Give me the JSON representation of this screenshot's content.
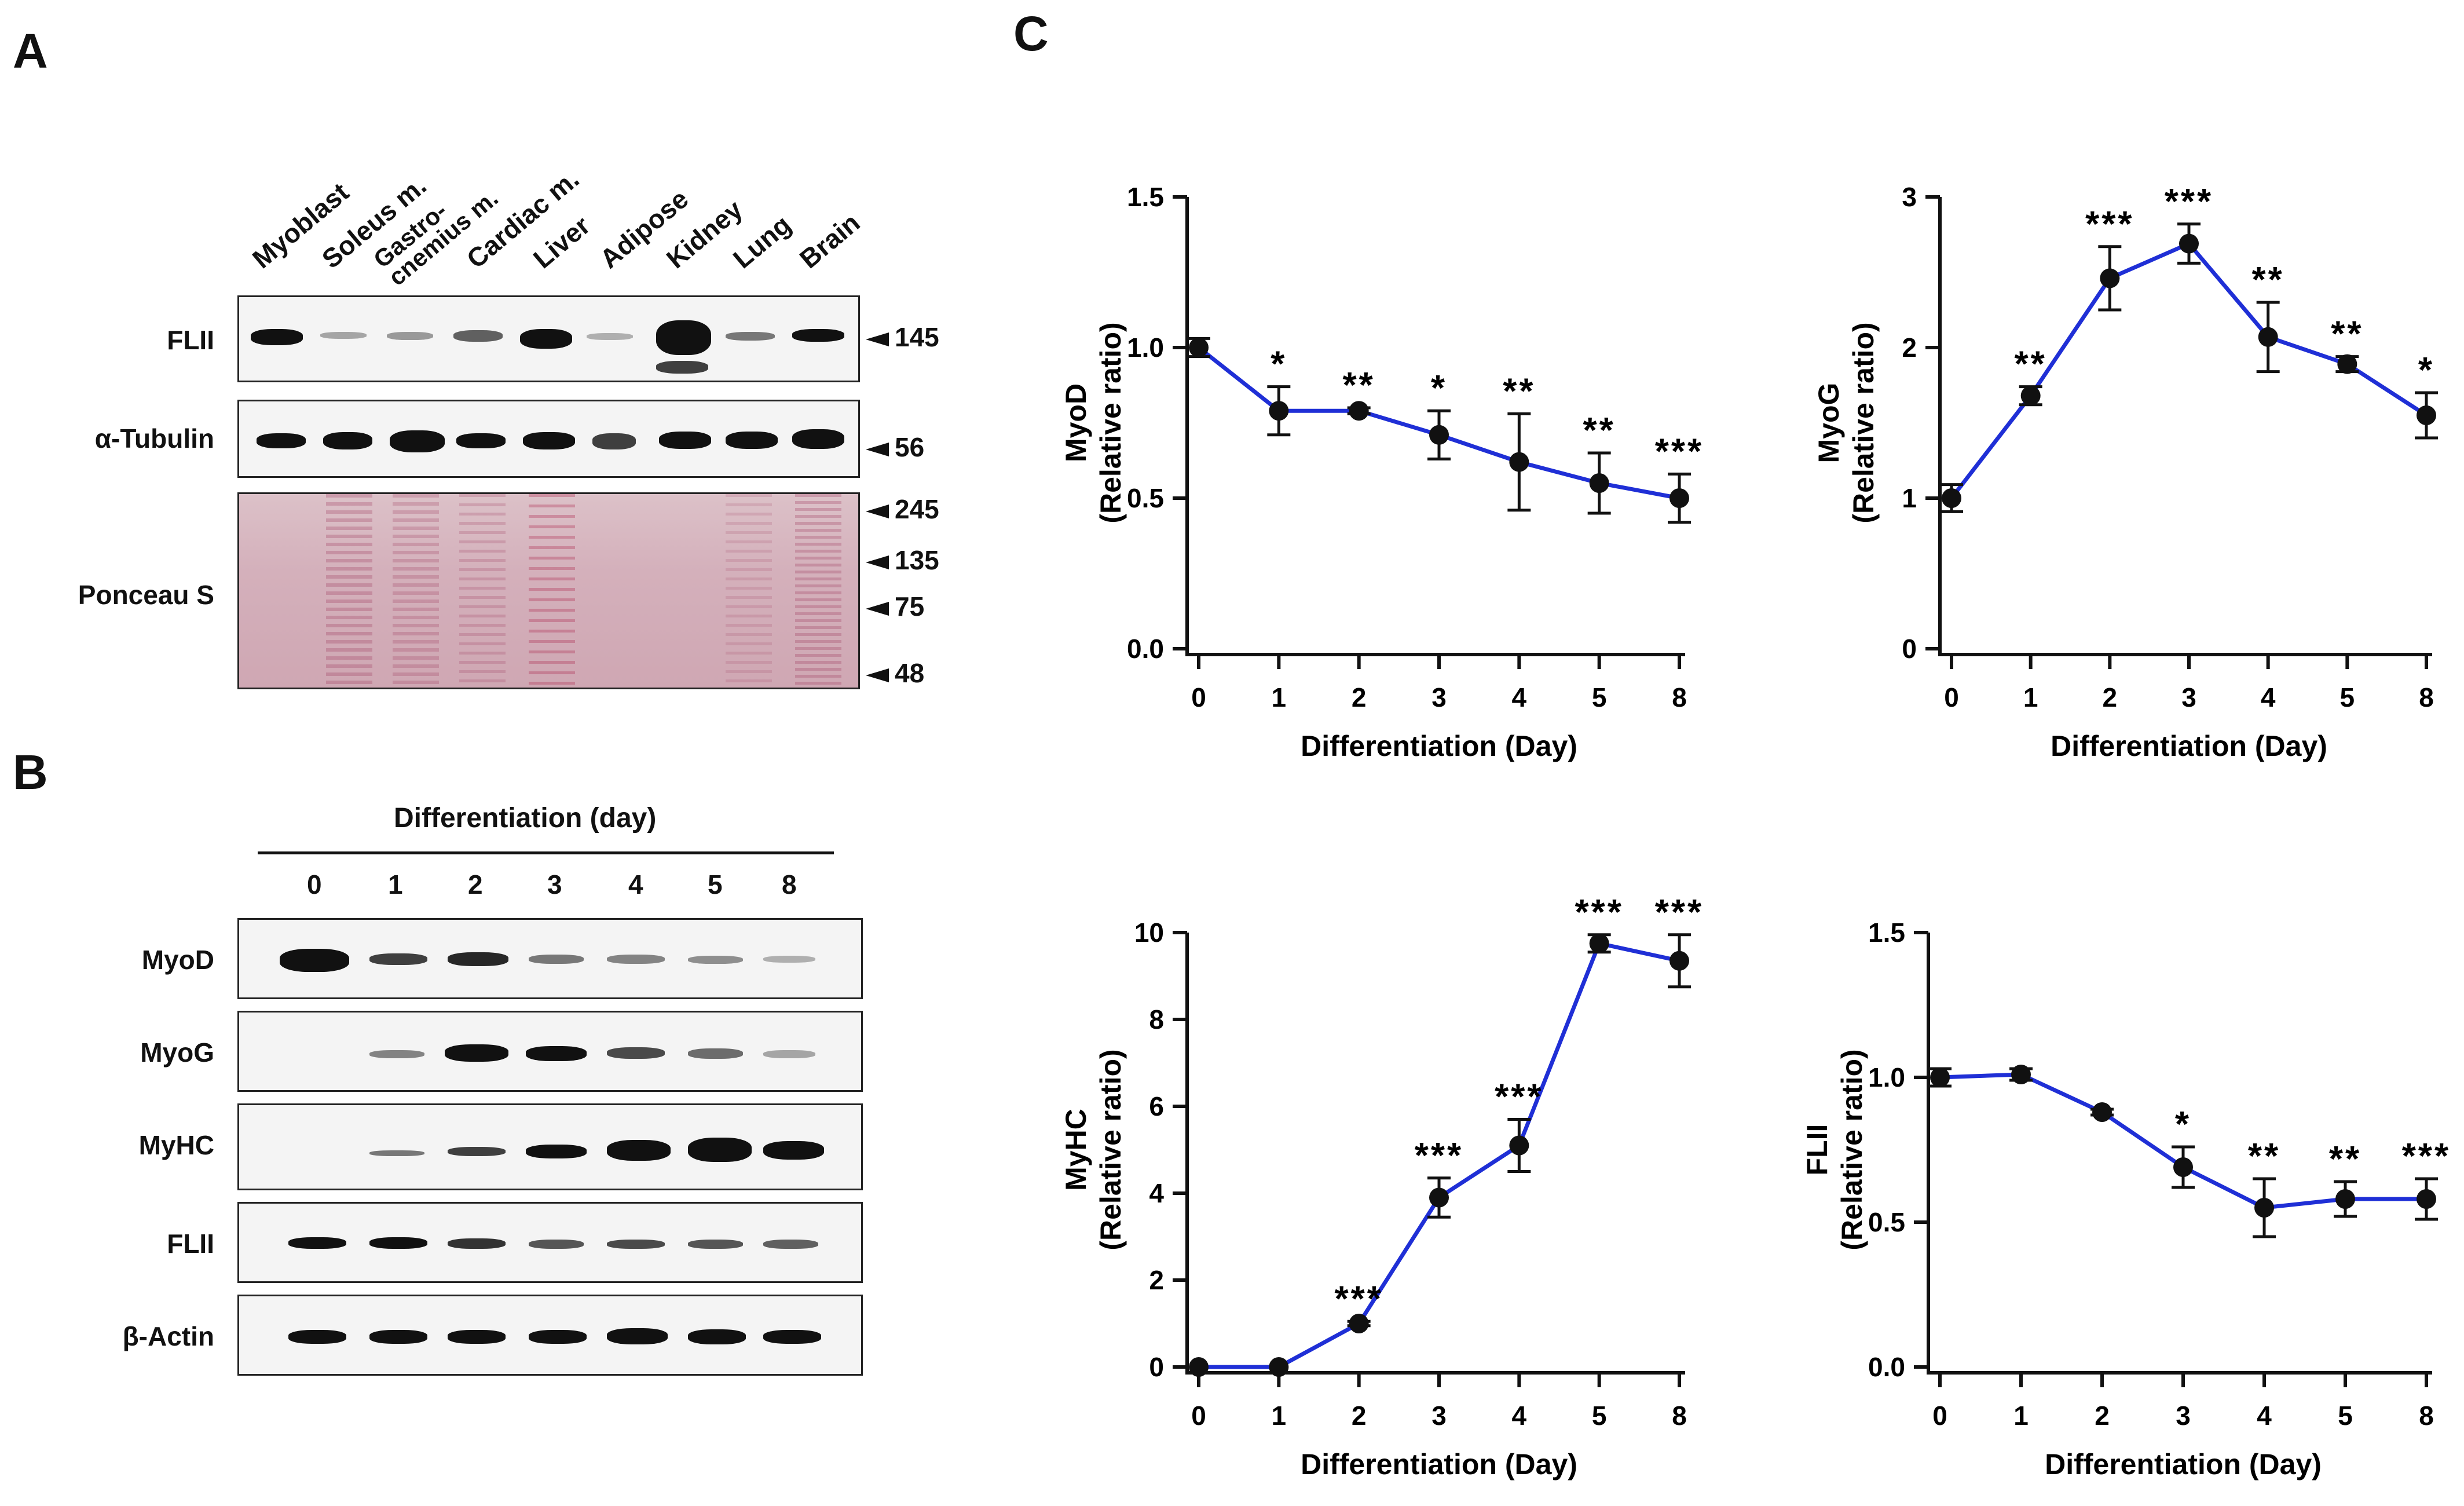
{
  "panels": {
    "a": "A",
    "b": "B",
    "c": "C"
  },
  "panel_a": {
    "lanes": [
      "Myoblast",
      "Soleus m.",
      "Gastro-\ncnemius m.",
      "Cardiac m.",
      "Liver",
      "Adipose",
      "Kidney",
      "Lung",
      "Brain"
    ],
    "rows": [
      "FLII",
      "α-Tubulin",
      "Ponceau S"
    ],
    "markers": {
      "flii": "145",
      "tubulin": "56",
      "ponceau": [
        "245",
        "135",
        "75",
        "48"
      ]
    }
  },
  "panel_b": {
    "header": "Differentiation (day)",
    "days": [
      "0",
      "1",
      "2",
      "3",
      "4",
      "5",
      "8"
    ],
    "rows": [
      "MyoD",
      "MyoG",
      "MyHC",
      "FLII",
      "β-Actin"
    ]
  },
  "chart_data": [
    {
      "type": "line",
      "id": "myod",
      "ylabel": [
        "MyoD",
        "(Relative ratio)"
      ],
      "xlabel": "Differentiation (Day)",
      "categories": [
        "0",
        "1",
        "2",
        "3",
        "4",
        "5",
        "8"
      ],
      "values": [
        1.0,
        0.79,
        0.79,
        0.71,
        0.62,
        0.55,
        0.5
      ],
      "errors": [
        0.03,
        0.08,
        0.01,
        0.08,
        0.16,
        0.1,
        0.08
      ],
      "significance": [
        "",
        "*",
        "**",
        "*",
        "**",
        "**",
        "***"
      ],
      "ylim": [
        0,
        1.5
      ],
      "yticks": [
        "0.0",
        "0.5",
        "1.0",
        "1.5"
      ],
      "ytick_values": [
        0,
        0.5,
        1.0,
        1.5
      ],
      "color": "#1f2fd6"
    },
    {
      "type": "line",
      "id": "myog",
      "ylabel": [
        "MyoG",
        "(Relative ratio)"
      ],
      "xlabel": "Differentiation (Day)",
      "categories": [
        "0",
        "1",
        "2",
        "3",
        "4",
        "5",
        "8"
      ],
      "values": [
        1.0,
        1.68,
        2.46,
        2.69,
        2.07,
        1.89,
        1.55
      ],
      "errors": [
        0.09,
        0.06,
        0.21,
        0.13,
        0.23,
        0.05,
        0.15
      ],
      "significance": [
        "",
        "**",
        "***",
        "***",
        "**",
        "**",
        "*"
      ],
      "ylim": [
        0,
        3
      ],
      "yticks": [
        "0",
        "1",
        "2",
        "3"
      ],
      "ytick_values": [
        0,
        1,
        2,
        3
      ],
      "color": "#1f2fd6"
    },
    {
      "type": "line",
      "id": "myhc",
      "ylabel": [
        "MyHC",
        "(Relative ratio)"
      ],
      "xlabel": "Differentiation (Day)",
      "categories": [
        "0",
        "1",
        "2",
        "3",
        "4",
        "5",
        "8"
      ],
      "values": [
        0.0,
        0.0,
        1.0,
        3.9,
        5.1,
        9.75,
        9.35
      ],
      "errors": [
        0.0,
        0.0,
        0.05,
        0.45,
        0.6,
        0.2,
        0.6
      ],
      "significance": [
        "",
        "",
        "***",
        "***",
        "***",
        "***",
        "***"
      ],
      "ylim": [
        0,
        10
      ],
      "yticks": [
        "0",
        "2",
        "4",
        "6",
        "8",
        "10"
      ],
      "ytick_values": [
        0,
        2,
        4,
        6,
        8,
        10
      ],
      "color": "#1f2fd6"
    },
    {
      "type": "line",
      "id": "flii",
      "ylabel": [
        "FLII",
        "(Relative ratio)"
      ],
      "xlabel": "Differentiation (Day)",
      "categories": [
        "0",
        "1",
        "2",
        "3",
        "4",
        "5",
        "8"
      ],
      "values": [
        1.0,
        1.01,
        0.88,
        0.69,
        0.55,
        0.58,
        0.58
      ],
      "errors": [
        0.03,
        0.02,
        0.01,
        0.07,
        0.1,
        0.06,
        0.07
      ],
      "significance": [
        "",
        "",
        "",
        "*",
        "**",
        "**",
        "***"
      ],
      "ylim": [
        0,
        1.5
      ],
      "yticks": [
        "0.0",
        "0.5",
        "1.0",
        "1.5"
      ],
      "ytick_values": [
        0,
        0.5,
        1.0,
        1.5
      ],
      "color": "#1f2fd6"
    }
  ]
}
